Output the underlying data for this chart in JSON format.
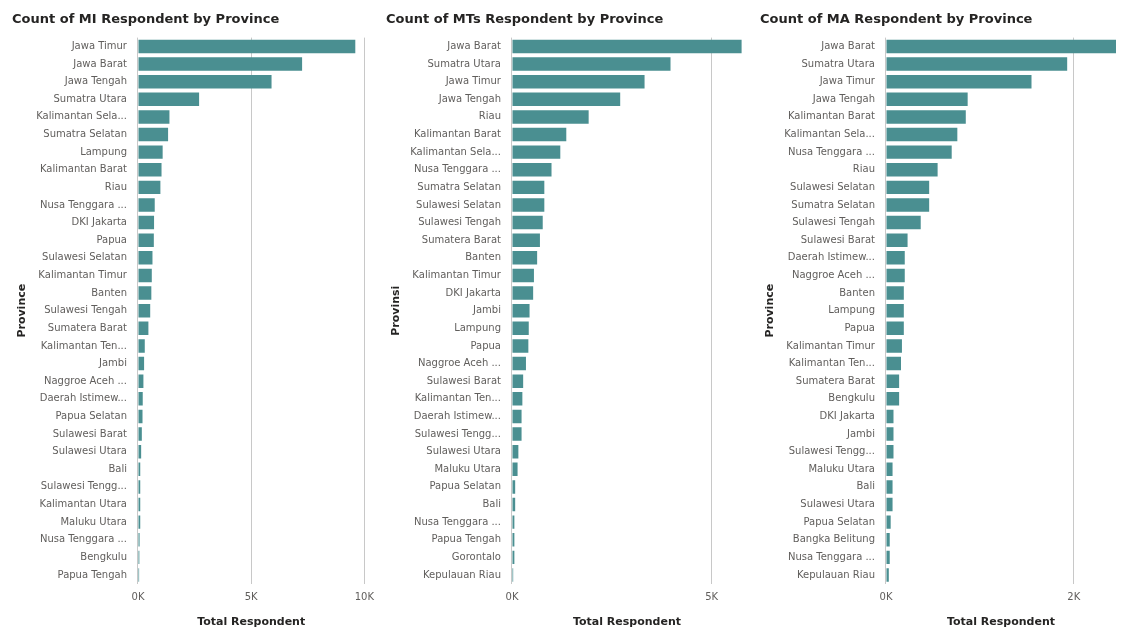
{
  "chart_data": [
    {
      "type": "bar",
      "orientation": "horizontal",
      "title": "Count of MI Respondent by Province",
      "xlabel": "Total Respondent",
      "ylabel": "Province",
      "grid": "x",
      "color": "#4a8f91",
      "categories": [
        "Jawa Timur",
        "Jawa Barat",
        "Jawa Tengah",
        "Sumatra Utara",
        "Kalimantan Sela...",
        "Sumatra Selatan",
        "Lampung",
        "Kalimantan Barat",
        "Riau",
        "Nusa Tenggara ...",
        "DKI Jakarta",
        "Papua",
        "Sulawesi Selatan",
        "Kalimantan Timur",
        "Banten",
        "Sulawesi Tengah",
        "Sumatera Barat",
        "Kalimantan Ten...",
        "Jambi",
        "Naggroe Aceh ...",
        "Daerah Istimew...",
        "Papua Selatan",
        "Sulawesi Barat",
        "Sulawesi Utara",
        "Bali",
        "Sulawesi Tengg...",
        "Kalimantan Utara",
        "Maluku Utara",
        "Nusa Tenggara ...",
        "Bengkulu",
        "Papua Tengah"
      ],
      "values": [
        9600,
        7250,
        5900,
        2700,
        1390,
        1330,
        1090,
        1040,
        990,
        740,
        710,
        700,
        640,
        610,
        590,
        540,
        460,
        300,
        270,
        240,
        210,
        200,
        170,
        140,
        100,
        100,
        100,
        100,
        70,
        60,
        50
      ],
      "xlim": [
        0,
        10000
      ],
      "xticks": [
        {
          "value": 0,
          "label": "0K"
        },
        {
          "value": 5000,
          "label": "5K"
        },
        {
          "value": 10000,
          "label": "10K"
        }
      ]
    },
    {
      "type": "bar",
      "orientation": "horizontal",
      "title": "Count of MTs Respondent by Province",
      "xlabel": "Total Respondent",
      "ylabel": "Provinsi",
      "grid": "x",
      "color": "#4a8f91",
      "categories": [
        "Jawa Barat",
        "Sumatra Utara",
        "Jawa Timur",
        "Jawa Tengah",
        "Riau",
        "Kalimantan Barat",
        "Kalimantan Sela...",
        "Nusa Tenggara ...",
        "Sumatra Selatan",
        "Sulawesi Selatan",
        "Sulawesi Tengah",
        "Sumatera Barat",
        "Banten",
        "Kalimantan Timur",
        "DKI Jakarta",
        "Jambi",
        "Lampung",
        "Papua",
        "Naggroe Aceh ...",
        "Sulawesi Barat",
        "Kalimantan Ten...",
        "Daerah Istimew...",
        "Sulawesi Tengg...",
        "Sulawesi Utara",
        "Maluku Utara",
        "Papua Selatan",
        "Bali",
        "Nusa Tenggara ...",
        "Papua Tengah",
        "Gorontalo",
        "Kepulauan Riau"
      ],
      "values": [
        5750,
        3970,
        3320,
        2710,
        1920,
        1360,
        1210,
        990,
        810,
        810,
        770,
        700,
        630,
        550,
        530,
        440,
        420,
        410,
        350,
        280,
        260,
        240,
        240,
        160,
        140,
        80,
        80,
        60,
        60,
        60,
        30
      ],
      "xlim": [
        0,
        5760
      ],
      "xticks": [
        {
          "value": 0,
          "label": "0K"
        },
        {
          "value": 5000,
          "label": "5K"
        }
      ]
    },
    {
      "type": "bar",
      "orientation": "horizontal",
      "title": "Count of MA Respondent by Province",
      "xlabel": "Total Respondent",
      "ylabel": "Province",
      "grid": "x",
      "color": "#4a8f91",
      "categories": [
        "Jawa Barat",
        "Sumatra Utara",
        "Jawa Timur",
        "Jawa Tengah",
        "Kalimantan Barat",
        "Kalimantan Sela...",
        "Nusa Tenggara ...",
        "Riau",
        "Sulawesi Selatan",
        "Sumatra Selatan",
        "Sulawesi Tengah",
        "Sulawesi Barat",
        "Daerah Istimew...",
        "Naggroe Aceh ...",
        "Banten",
        "Lampung",
        "Papua",
        "Kalimantan Timur",
        "Kalimantan Ten...",
        "Sumatera Barat",
        "Bengkulu",
        "DKI Jakarta",
        "Jambi",
        "Sulawesi Tengg...",
        "Maluku Utara",
        "Bali",
        "Sulawesi Utara",
        "Papua Selatan",
        "Bangka Belitung",
        "Nusa Tenggara ...",
        "Kepulauan Riau"
      ],
      "values": [
        2450,
        1930,
        1550,
        870,
        850,
        760,
        700,
        550,
        460,
        460,
        370,
        230,
        200,
        200,
        190,
        190,
        190,
        170,
        160,
        140,
        140,
        80,
        80,
        80,
        70,
        70,
        70,
        50,
        40,
        40,
        30
      ],
      "xlim": [
        0,
        2450
      ],
      "xticks": [
        {
          "value": 0,
          "label": "0K"
        },
        {
          "value": 2000,
          "label": "2K"
        }
      ]
    }
  ]
}
